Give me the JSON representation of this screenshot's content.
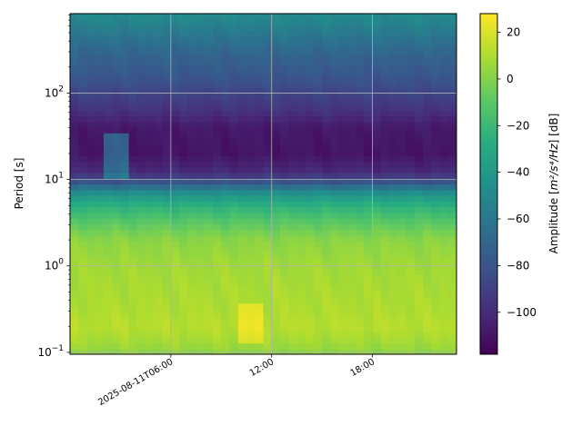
{
  "chart_data": {
    "type": "heatmap",
    "ylabel": "Period [s]",
    "yscale": "log",
    "ylim": [
      0.095,
      830
    ],
    "y_ticks": [
      {
        "value": 0.1,
        "label": "10",
        "exp": "−1"
      },
      {
        "value": 1,
        "label": "10",
        "exp": "0"
      },
      {
        "value": 10,
        "label": "10",
        "exp": "1"
      },
      {
        "value": 100,
        "label": "10",
        "exp": "2"
      }
    ],
    "xlim": [
      "2025-08-11T00:00",
      "2025-08-11T23:00"
    ],
    "x_ticks": [
      {
        "value": "2025-08-11T06:00",
        "label": "2025-08-11T06:00"
      },
      {
        "value": "2025-08-11T12:00",
        "label": "12:00"
      },
      {
        "value": "2025-08-11T18:00",
        "label": "18:00"
      }
    ],
    "grid": true,
    "colormap": "viridis",
    "colorbar": {
      "label_main": "Amplitude [",
      "label_math": "m²/s⁴/Hz",
      "label_end": "] [dB]",
      "range": [
        -118,
        28
      ],
      "ticks": [
        20,
        0,
        -20,
        -40,
        -60,
        -80,
        -100
      ]
    },
    "period_profile": [
      {
        "period": 0.1,
        "db": 3
      },
      {
        "period": 0.14,
        "db": 8
      },
      {
        "period": 0.2,
        "db": 12
      },
      {
        "period": 0.3,
        "db": 10
      },
      {
        "period": 0.5,
        "db": 9
      },
      {
        "period": 1,
        "db": 7
      },
      {
        "period": 2,
        "db": 2
      },
      {
        "period": 3,
        "db": -8
      },
      {
        "period": 5,
        "db": -25
      },
      {
        "period": 7,
        "db": -45
      },
      {
        "period": 9,
        "db": -75
      },
      {
        "period": 12,
        "db": -100
      },
      {
        "period": 20,
        "db": -110
      },
      {
        "period": 40,
        "db": -108
      },
      {
        "period": 70,
        "db": -95
      },
      {
        "period": 150,
        "db": -80
      },
      {
        "period": 300,
        "db": -70
      },
      {
        "period": 600,
        "db": -55
      },
      {
        "period": 830,
        "db": -48
      }
    ],
    "time_anomalies": [
      {
        "start": "2025-08-11T10:00",
        "end": "2025-08-11T11:30",
        "period_min": 0.13,
        "period_max": 0.35,
        "db_offset": 12
      },
      {
        "start": "2025-08-11T02:00",
        "end": "2025-08-11T03:30",
        "period_min": 10,
        "period_max": 35,
        "db_offset": 35
      }
    ]
  }
}
